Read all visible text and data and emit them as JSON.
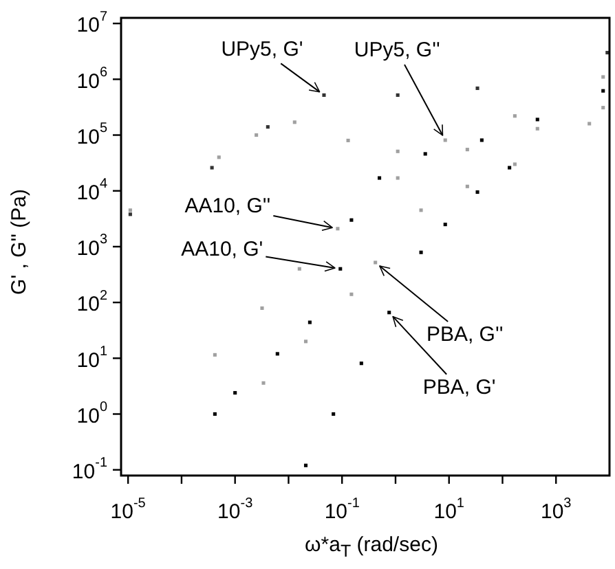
{
  "chart_data": {
    "type": "scatter",
    "xlabel": "ω*a$_{T}$ (rad/sec)",
    "ylabel": "G' , G'' (Pa)",
    "log": "xy",
    "grid": false,
    "legend": false,
    "marker": "square",
    "xlim": [
      7.4e-06,
      10000.0
    ],
    "ylim": [
      0.079,
      12600000.0
    ],
    "xticks": [
      {
        "value": 1e-05,
        "label": "10$^{-5}$"
      },
      {
        "value": 0.0001,
        "label": null
      },
      {
        "value": 0.001,
        "label": "10$^{-3}$"
      },
      {
        "value": 0.01,
        "label": null
      },
      {
        "value": 0.1,
        "label": "10$^{-1}$"
      },
      {
        "value": 1,
        "label": null
      },
      {
        "value": 10,
        "label": "10$^{1}$"
      },
      {
        "value": 100,
        "label": null
      },
      {
        "value": 1000,
        "label": "10$^{3}$"
      }
    ],
    "yticks": [
      {
        "value": 0.1,
        "label": "10$^{-1}$"
      },
      {
        "value": 1,
        "label": "10$^{0}$"
      },
      {
        "value": 10,
        "label": "10$^{1}$"
      },
      {
        "value": 100,
        "label": "10$^{2}$"
      },
      {
        "value": 1000,
        "label": "10$^{3}$"
      },
      {
        "value": 10000,
        "label": "10$^{4}$"
      },
      {
        "value": 100000,
        "label": "10$^{5}$"
      },
      {
        "value": 1000000,
        "label": "10$^{6}$"
      },
      {
        "value": 10000000,
        "label": "10$^{7}$"
      }
    ],
    "series": [
      {
        "color": "#333333",
        "x": [
          1.1e-05,
          0.00037,
          0.0041,
          0.046,
          1.1,
          34,
          9100
        ],
        "values": [
          3800,
          26000,
          140000,
          520000,
          520000,
          690000,
          3000000
        ]
      },
      {
        "color": "#a0a0a0",
        "x": [
          1.1e-05,
          0.0005,
          0.0025,
          0.013,
          0.13,
          1.1,
          8.5,
          170,
          7600
        ],
        "values": [
          4500,
          40000,
          100000,
          170000,
          80000,
          51000,
          81000,
          220000,
          1100000
        ]
      },
      {
        "color": "#a0a0a0",
        "x": [
          0.00042,
          0.0032,
          0.016,
          0.083,
          1.1,
          22,
          450,
          7600
        ],
        "values": [
          11.5,
          79,
          400,
          2100,
          17000,
          55000,
          130000,
          310000
        ]
      },
      {
        "color": "#000000",
        "x": [
          0.00042,
          0.001,
          0.0062,
          0.025,
          0.093,
          0.15,
          0.5,
          3.6,
          41,
          450,
          7600
        ],
        "values": [
          1,
          2.4,
          12,
          44,
          400,
          3000,
          17000,
          46000,
          81000,
          190000,
          620000
        ]
      },
      {
        "color": "#a0a0a0",
        "x": [
          0.0034,
          0.021,
          0.15,
          0.42,
          3,
          22,
          170,
          4200
        ],
        "values": [
          3.6,
          20,
          140,
          520,
          4500,
          12000,
          30000,
          160000
        ]
      },
      {
        "color": "#000000",
        "x": [
          0.021,
          0.069,
          0.23,
          0.76,
          3,
          8.5,
          34,
          135
        ],
        "values": [
          0.12,
          1,
          8.1,
          66,
          790,
          2500,
          9500,
          26000
        ]
      }
    ],
    "annotations": [
      {
        "text": "UPy5, G'",
        "x": 0.046,
        "y": 520000
      },
      {
        "text": "UPy5, G''",
        "x": 8.5,
        "y": 81000
      },
      {
        "text": "AA10, G''",
        "x": 0.083,
        "y": 2100
      },
      {
        "text": "AA10, G'",
        "x": 0.093,
        "y": 400
      },
      {
        "text": "PBA, G''",
        "x": 0.42,
        "y": 520
      },
      {
        "text": "PBA, G'",
        "x": 0.76,
        "y": 66
      }
    ]
  }
}
